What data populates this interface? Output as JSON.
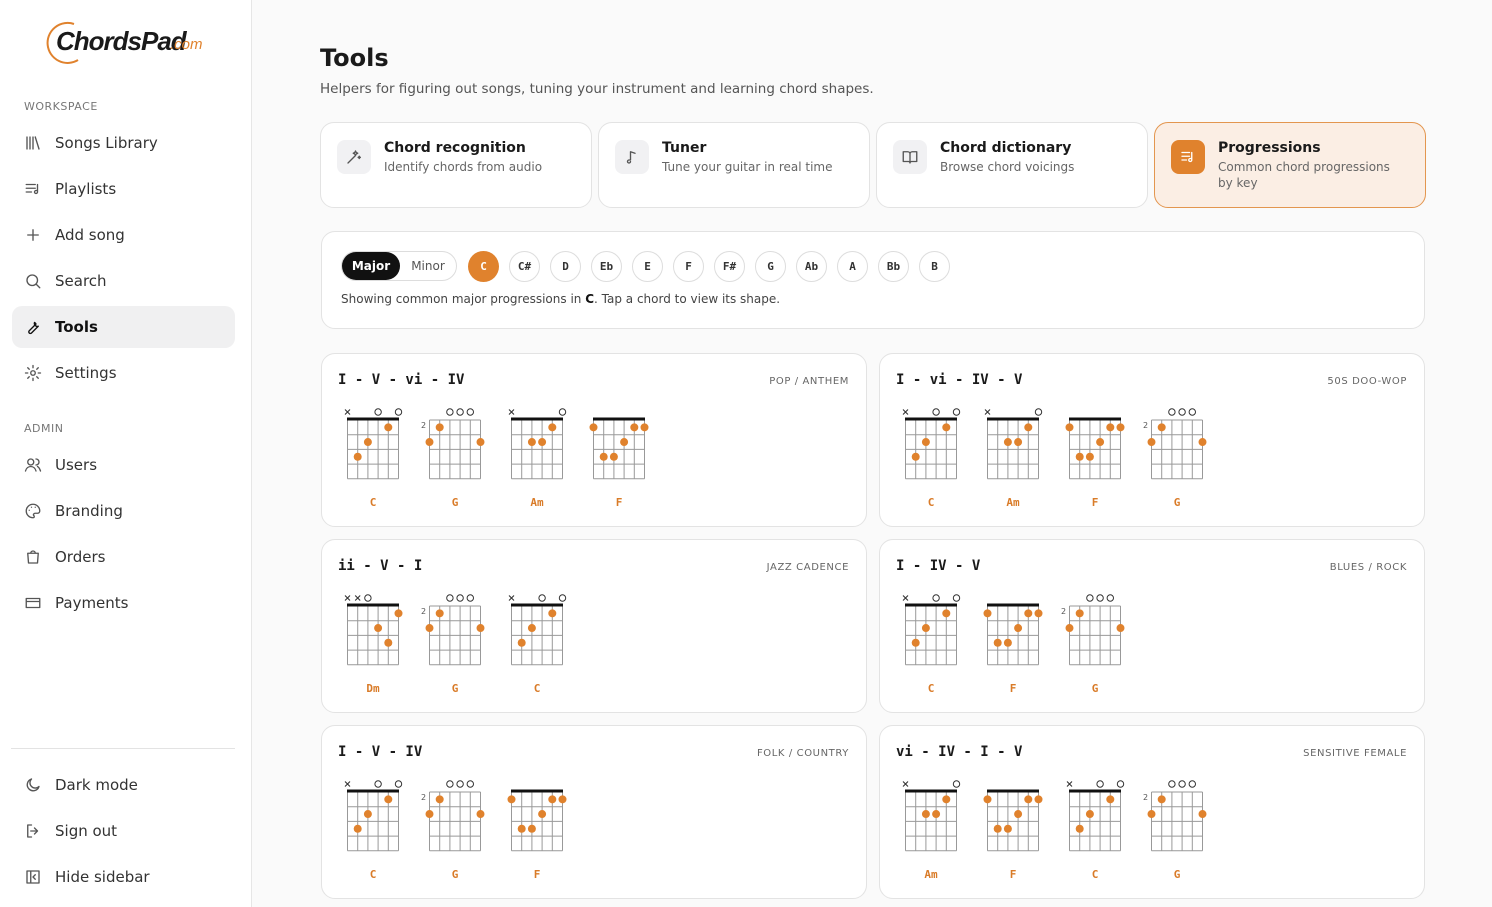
{
  "brand": {
    "name": "ChordsPad",
    "suffix": ".com"
  },
  "sidebar": {
    "sections": [
      {
        "title": "WORKSPACE",
        "items": [
          "Songs Library",
          "Playlists",
          "Add song",
          "Search",
          "Tools",
          "Settings"
        ]
      },
      {
        "title": "ADMIN",
        "items": [
          "Users",
          "Branding",
          "Orders",
          "Payments"
        ]
      }
    ],
    "active": "Tools",
    "footer": [
      "Dark mode",
      "Sign out",
      "Hide sidebar"
    ]
  },
  "page": {
    "title": "Tools",
    "subtitle": "Helpers for figuring out songs, tuning your instrument and learning chord shapes."
  },
  "tools": [
    {
      "title": "Chord recognition",
      "description": "Identify chords from audio"
    },
    {
      "title": "Tuner",
      "description": "Tune your guitar in real time"
    },
    {
      "title": "Chord dictionary",
      "description": "Browse chord voicings"
    },
    {
      "title": "Progressions",
      "description": "Common chord progressions by key"
    }
  ],
  "active_tool": "Progressions",
  "selector": {
    "modes": [
      "Major",
      "Minor"
    ],
    "active_mode": "Major",
    "keys": [
      "C",
      "C#",
      "D",
      "Eb",
      "E",
      "F",
      "F#",
      "G",
      "Ab",
      "A",
      "Bb",
      "B"
    ],
    "active_key": "C",
    "info": {
      "before": "Showing common major progressions in ",
      "key": "C",
      "after": ". Tap a chord to view its shape."
    }
  },
  "progressions": [
    {
      "name": "I - V - vi - IV",
      "tag": "POP / ANTHEM",
      "chords": [
        "C",
        "G",
        "Am",
        "F"
      ]
    },
    {
      "name": "I - vi - IV - V",
      "tag": "50S DOO-WOP",
      "chords": [
        "C",
        "Am",
        "F",
        "G"
      ]
    },
    {
      "name": "ii - V - I",
      "tag": "JAZZ CADENCE",
      "chords": [
        "Dm",
        "G",
        "C"
      ]
    },
    {
      "name": "I - IV - V",
      "tag": "BLUES / ROCK",
      "chords": [
        "C",
        "F",
        "G"
      ]
    },
    {
      "name": "I - V - IV",
      "tag": "FOLK / COUNTRY",
      "chords": [
        "C",
        "G",
        "F"
      ]
    },
    {
      "name": "vi - IV - I - V",
      "tag": "SENSITIVE FEMALE",
      "chords": [
        "Am",
        "F",
        "C",
        "G"
      ]
    }
  ],
  "chords": {
    "C": {
      "frets": [
        "x",
        3,
        2,
        0,
        1,
        0
      ]
    },
    "G": {
      "frets": [
        3,
        2,
        0,
        0,
        0,
        3
      ],
      "base_fret": 2
    },
    "Am": {
      "frets": [
        "x",
        null,
        2,
        2,
        1,
        0
      ]
    },
    "F": {
      "frets": [
        1,
        3,
        3,
        2,
        1,
        1
      ]
    },
    "Dm": {
      "frets": [
        "x",
        "x",
        0,
        2,
        3,
        1
      ]
    }
  }
}
